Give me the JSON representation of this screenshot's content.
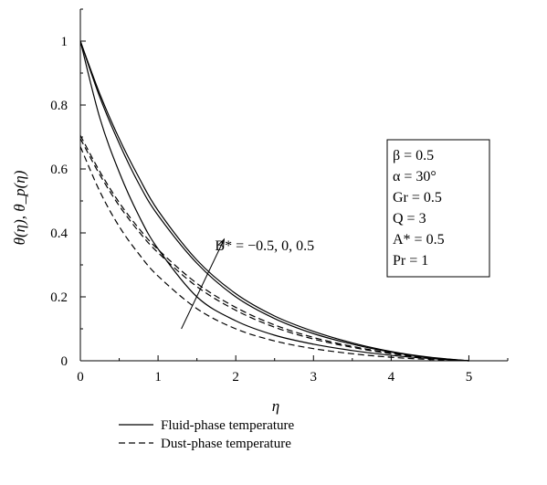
{
  "chart_data": {
    "type": "line",
    "xlabel": "η",
    "ylabel": "θ(η), θ_p(η)",
    "xlim": [
      0,
      5.5
    ],
    "ylim": [
      0,
      1.1
    ],
    "x_ticks": [
      0,
      1,
      2,
      3,
      4,
      5
    ],
    "y_ticks": [
      0,
      0.2,
      0.4,
      0.6,
      0.8,
      1
    ],
    "x_tick_labels": [
      "0",
      "1",
      "2",
      "3",
      "4",
      "5"
    ],
    "y_tick_labels": [
      "0",
      "0.2",
      "0.4",
      "0.6",
      "0.8",
      "1"
    ],
    "grid": false,
    "legend": {
      "placement": "bottom",
      "entries": [
        {
          "label": "Fluid-phase temperature",
          "style": "solid"
        },
        {
          "label": "Dust-phase temperature",
          "style": "dashed"
        }
      ]
    },
    "parameters": [
      "β = 0.5",
      "α = 30°",
      "Gr = 0.5",
      "Q = 3",
      "A* = 0.5",
      "Pr = 1"
    ],
    "annotation": {
      "text": "B* = −0.5, 0, 0.5",
      "arrow_from": [
        1.3,
        0.1
      ],
      "arrow_to": [
        1.85,
        0.38
      ]
    },
    "series": [
      {
        "style": "solid",
        "param": "B* = −0.5",
        "x": [
          0,
          0.25,
          0.5,
          0.75,
          1,
          1.5,
          2,
          2.5,
          3,
          3.5,
          4,
          4.5,
          5
        ],
        "y": [
          1,
          0.76,
          0.59,
          0.455,
          0.35,
          0.2,
          0.125,
          0.08,
          0.052,
          0.032,
          0.017,
          0.007,
          0
        ]
      },
      {
        "style": "solid",
        "param": "B* = 0",
        "x": [
          0,
          0.25,
          0.5,
          0.75,
          1,
          1.5,
          2,
          2.5,
          3,
          3.5,
          4,
          4.5,
          5
        ],
        "y": [
          1,
          0.825,
          0.68,
          0.555,
          0.455,
          0.305,
          0.2,
          0.132,
          0.085,
          0.052,
          0.027,
          0.01,
          0
        ]
      },
      {
        "style": "solid",
        "param": "B* = 0.5",
        "x": [
          0,
          0.25,
          0.5,
          0.75,
          1,
          1.5,
          2,
          2.5,
          3,
          3.5,
          4,
          4.5,
          5
        ],
        "y": [
          1,
          0.835,
          0.695,
          0.575,
          0.47,
          0.315,
          0.21,
          0.14,
          0.092,
          0.056,
          0.029,
          0.011,
          0
        ]
      },
      {
        "style": "dashed",
        "param": "B* = −0.5",
        "x": [
          0,
          0.25,
          0.5,
          0.75,
          1,
          1.5,
          2,
          2.5,
          3,
          3.5,
          4,
          4.5,
          5
        ],
        "y": [
          0.67,
          0.53,
          0.42,
          0.335,
          0.265,
          0.163,
          0.1,
          0.062,
          0.038,
          0.022,
          0.011,
          0.004,
          0
        ]
      },
      {
        "style": "dashed",
        "param": "B* = 0",
        "x": [
          0,
          0.25,
          0.5,
          0.75,
          1,
          1.5,
          2,
          2.5,
          3,
          3.5,
          4,
          4.5,
          5
        ],
        "y": [
          0.695,
          0.582,
          0.485,
          0.405,
          0.338,
          0.232,
          0.158,
          0.105,
          0.068,
          0.042,
          0.022,
          0.008,
          0
        ]
      },
      {
        "style": "dashed",
        "param": "B* = 0.5",
        "x": [
          0,
          0.25,
          0.5,
          0.75,
          1,
          1.5,
          2,
          2.5,
          3,
          3.5,
          4,
          4.5,
          5
        ],
        "y": [
          0.705,
          0.592,
          0.495,
          0.415,
          0.348,
          0.242,
          0.167,
          0.112,
          0.073,
          0.045,
          0.024,
          0.009,
          0
        ]
      }
    ]
  }
}
